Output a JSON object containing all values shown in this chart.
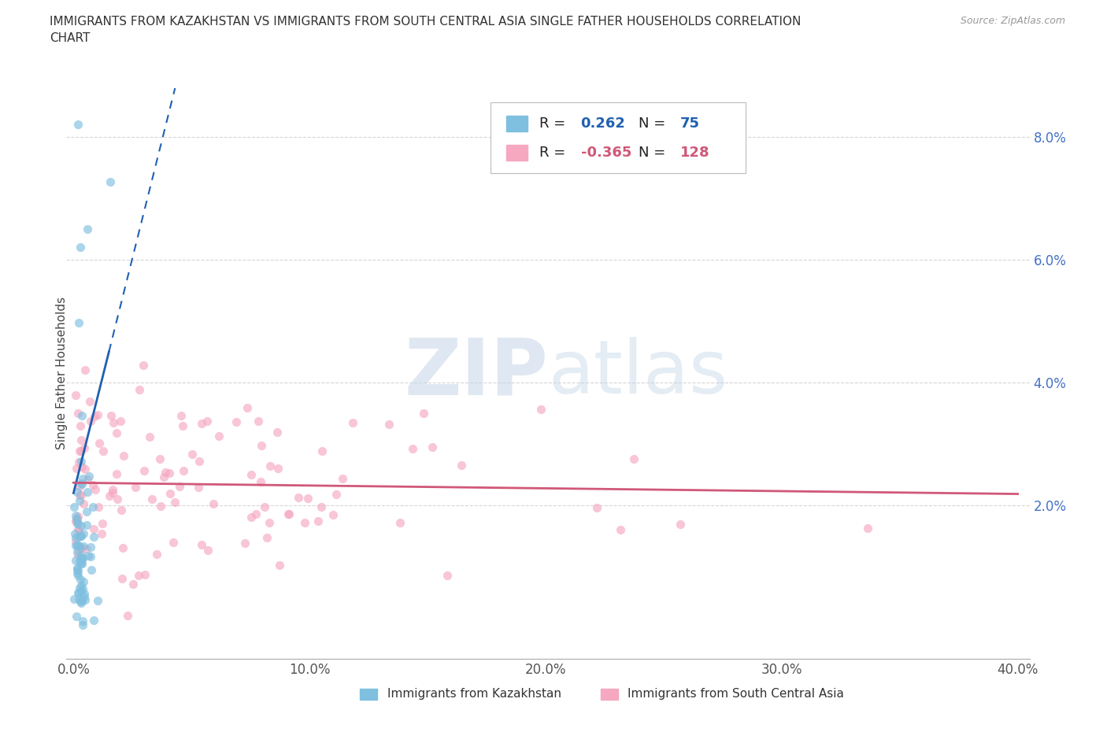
{
  "title_line1": "IMMIGRANTS FROM KAZAKHSTAN VS IMMIGRANTS FROM SOUTH CENTRAL ASIA SINGLE FATHER HOUSEHOLDS CORRELATION",
  "title_line2": "CHART",
  "source": "Source: ZipAtlas.com",
  "ylabel": "Single Father Households",
  "ytick_vals": [
    0.02,
    0.04,
    0.06,
    0.08
  ],
  "ytick_labels": [
    "2.0%",
    "4.0%",
    "6.0%",
    "8.0%"
  ],
  "xtick_vals": [
    0.0,
    0.1,
    0.2,
    0.3,
    0.4
  ],
  "xtick_labels": [
    "0.0%",
    "10.0%",
    "20.0%",
    "30.0%",
    "40.0%"
  ],
  "xlim": [
    -0.003,
    0.405
  ],
  "ylim": [
    -0.005,
    0.088
  ],
  "kaz_R": 0.262,
  "kaz_N": 75,
  "sca_R": -0.365,
  "sca_N": 128,
  "kaz_scatter_color": "#7fbfdf",
  "sca_scatter_color": "#f5a8c0",
  "kaz_line_color": "#2060b0",
  "sca_line_color": "#d05878",
  "watermark_zip": "ZIP",
  "watermark_atlas": "atlas",
  "legend_label_kaz": "Immigrants from Kazakhstan",
  "legend_label_sca": "Immigrants from South Central Asia",
  "background_color": "#ffffff",
  "grid_color": "#cccccc",
  "title_color": "#333333",
  "source_color": "#999999",
  "tick_color": "#555555",
  "ytick_color": "#4472c4"
}
